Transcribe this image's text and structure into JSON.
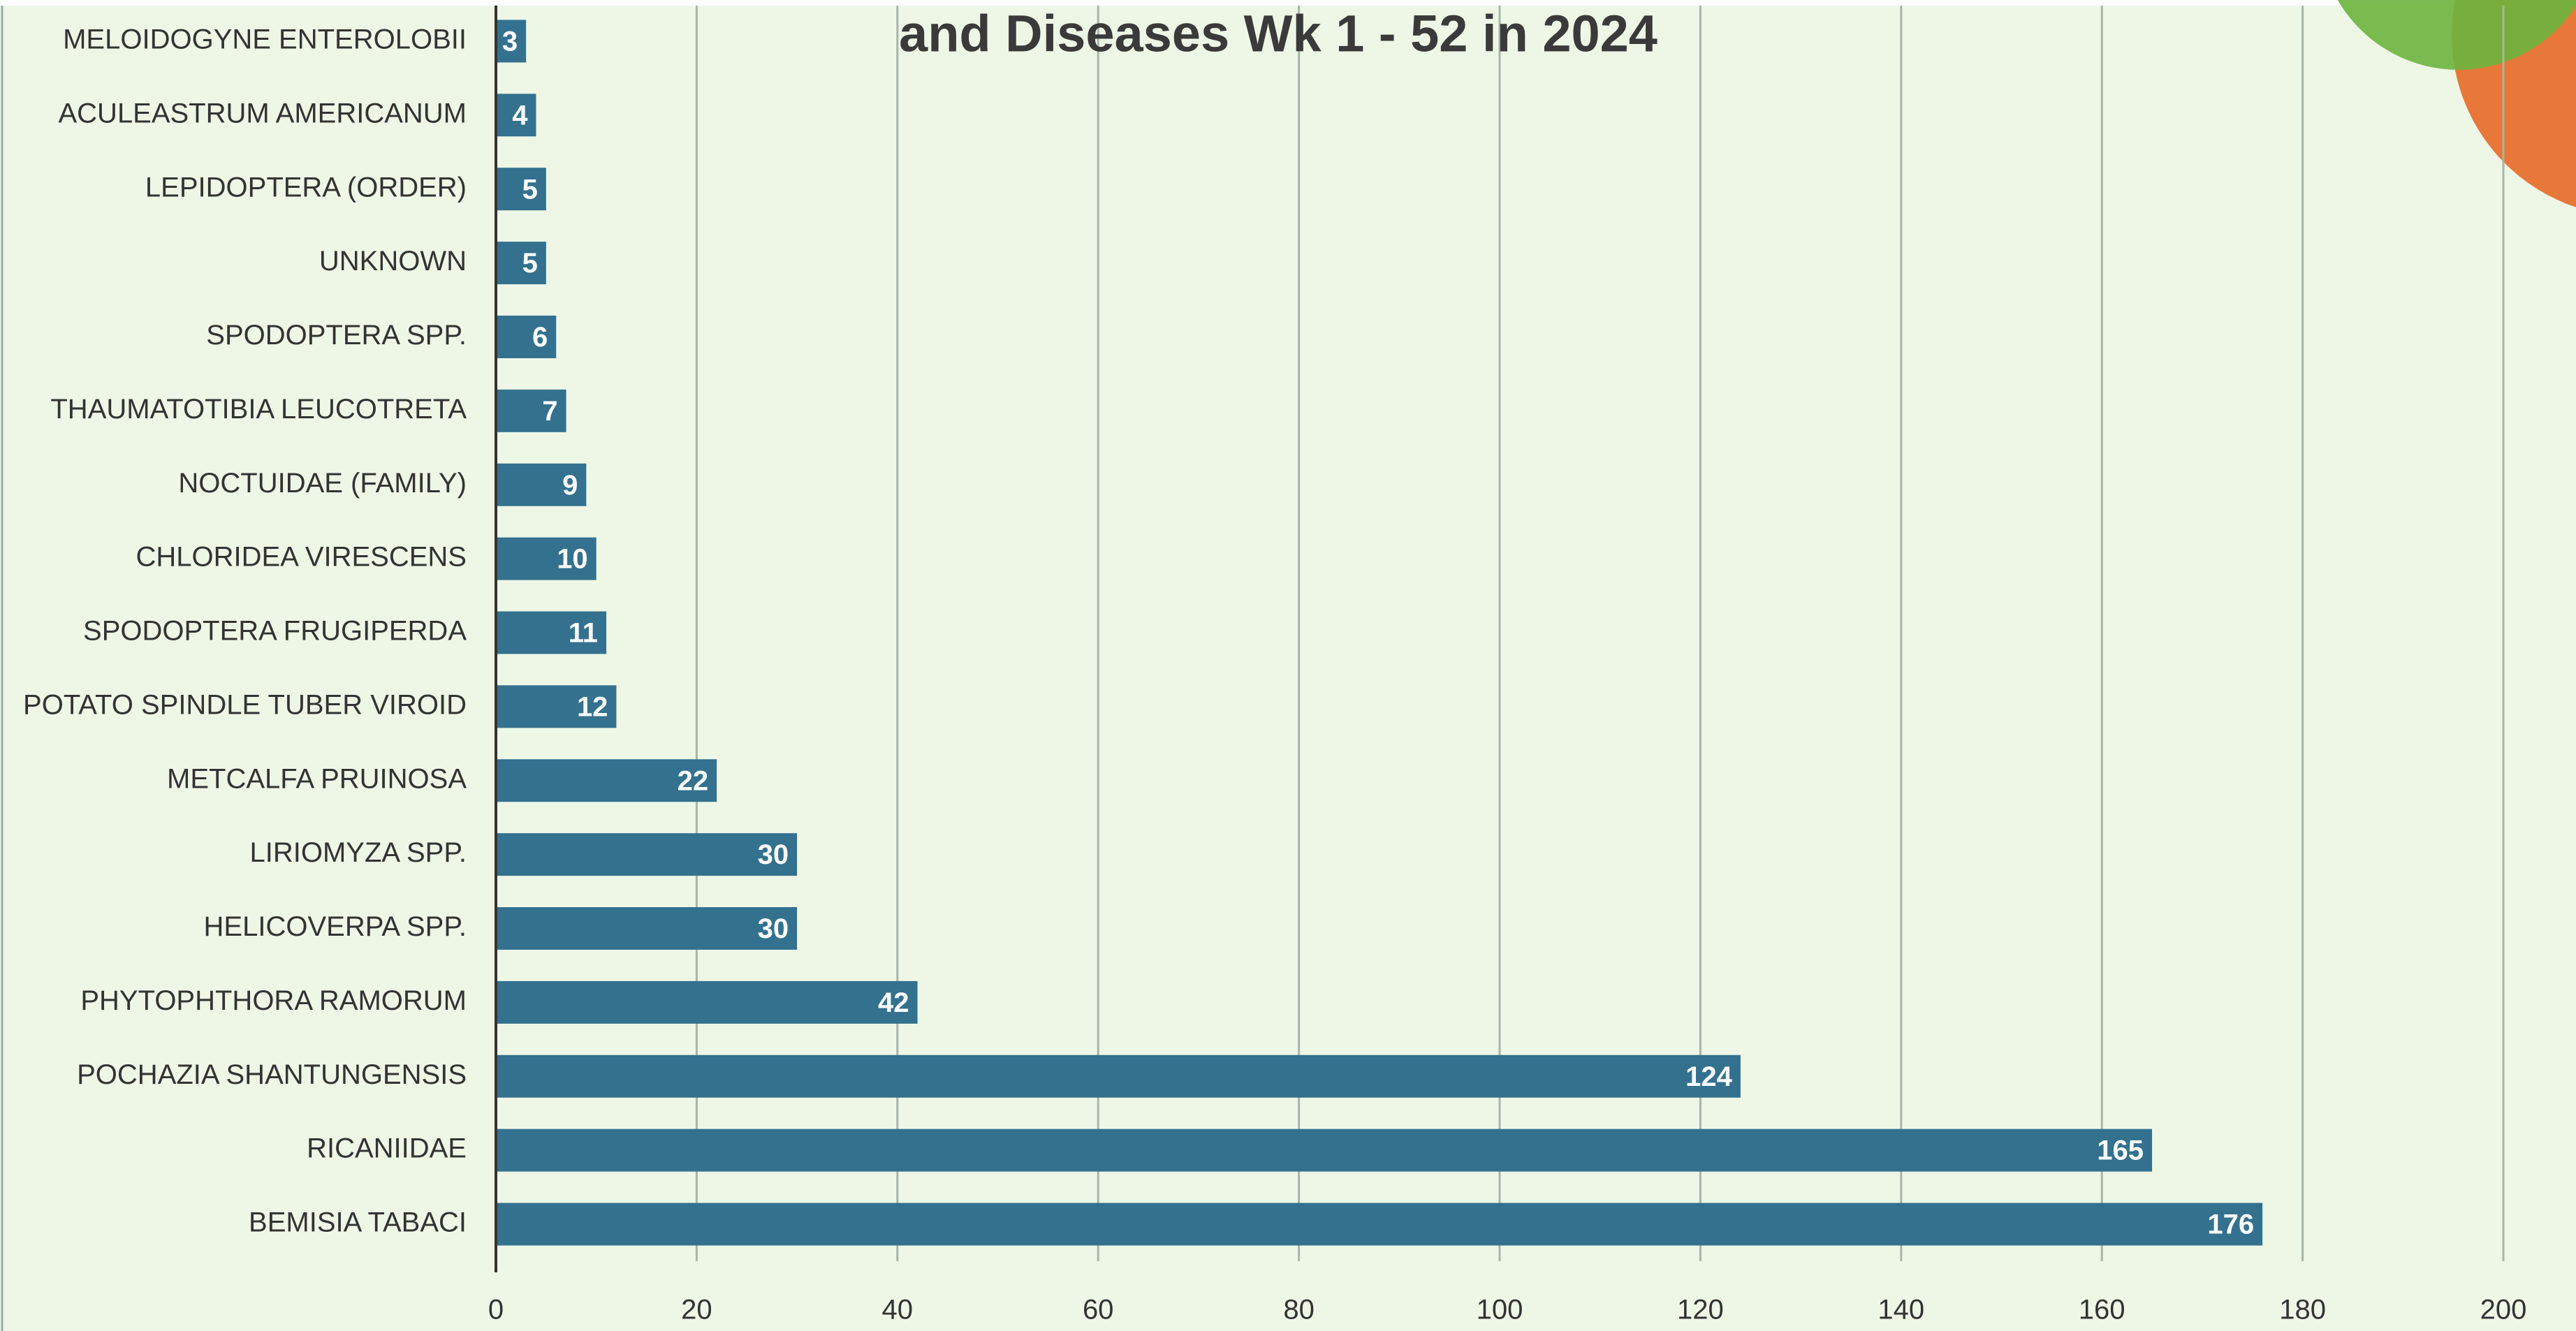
{
  "chart_data": {
    "type": "bar",
    "orientation": "horizontal",
    "title": "and Diseases Wk 1 - 52 in 2024",
    "categories": [
      "MELOIDOGYNE ENTEROLOBII",
      "ACULEASTRUM AMERICANUM",
      "LEPIDOPTERA (ORDER)",
      "UNKNOWN",
      "SPODOPTERA SPP.",
      "THAUMATOTIBIA LEUCOTRETA",
      "NOCTUIDAE (FAMILY)",
      "CHLORIDEA VIRESCENS",
      "SPODOPTERA FRUGIPERDA",
      "POTATO SPINDLE TUBER VIROID",
      "METCALFA PRUINOSA",
      "LIRIOMYZA SPP.",
      "HELICOVERPA SPP.",
      "PHYTOPHTHORA RAMORUM",
      "POCHAZIA SHANTUNGENSIS",
      "RICANIIDAE",
      "BEMISIA TABACI"
    ],
    "values": [
      3,
      4,
      5,
      5,
      6,
      7,
      9,
      10,
      11,
      12,
      22,
      30,
      30,
      42,
      124,
      165,
      176
    ],
    "color": "#33718f",
    "xlim": [
      0,
      200
    ],
    "xticks": [
      0,
      20,
      40,
      60,
      80,
      100,
      120,
      140,
      160,
      180,
      200
    ],
    "grid": true
  }
}
